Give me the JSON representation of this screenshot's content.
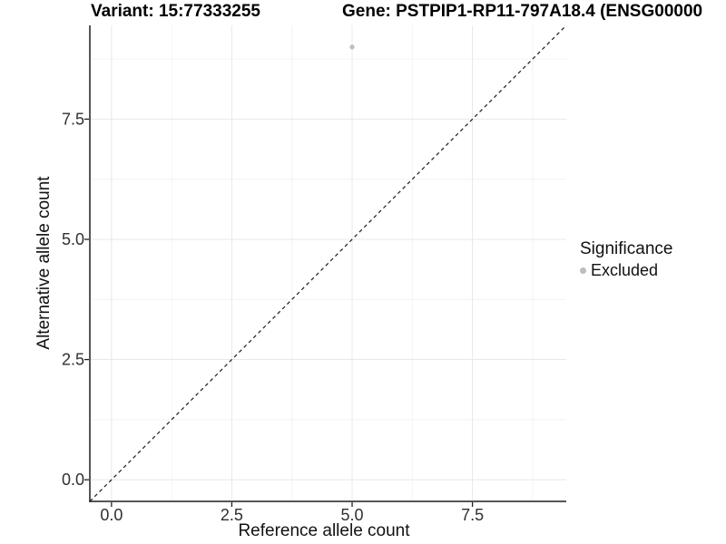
{
  "titles": {
    "variant": "Variant: 15:77333255",
    "gene": "Gene: PSTPIP1-RP11-797A18.4 (ENSG00000"
  },
  "chart_data": {
    "type": "scatter",
    "xlabel": "Reference allele count",
    "ylabel": "Alternative allele count",
    "xlim": [
      -0.45,
      9.45
    ],
    "ylim": [
      -0.45,
      9.45
    ],
    "xticks": [
      0,
      2.5,
      5,
      7.5
    ],
    "xtick_labels": [
      "0.0",
      "2.5",
      "5.0",
      "7.5"
    ],
    "yticks": [
      0,
      2.5,
      5,
      7.5
    ],
    "ytick_labels": [
      "0.0",
      "2.5",
      "5.0",
      "7.5"
    ],
    "minor_ticks": [
      1.25,
      3.75,
      6.25,
      8.75
    ],
    "grid": true,
    "points": [
      {
        "x": 5,
        "y": 9,
        "series": "Excluded"
      }
    ],
    "reference_line": {
      "slope": 1,
      "intercept": 0,
      "style": "dashed"
    },
    "legend": {
      "title": "Significance",
      "position": "right",
      "items": [
        {
          "label": "Excluded",
          "color": "#bdbdbd"
        }
      ]
    }
  },
  "colors": {
    "background": "#ffffff",
    "grid_major": "#e8e8e8",
    "grid_minor": "#f4f4f4",
    "axis_line": "#1f1f1f",
    "tick_text": "#303030",
    "reference_line": "#1a1a1a",
    "point": "#bdbdbd"
  }
}
